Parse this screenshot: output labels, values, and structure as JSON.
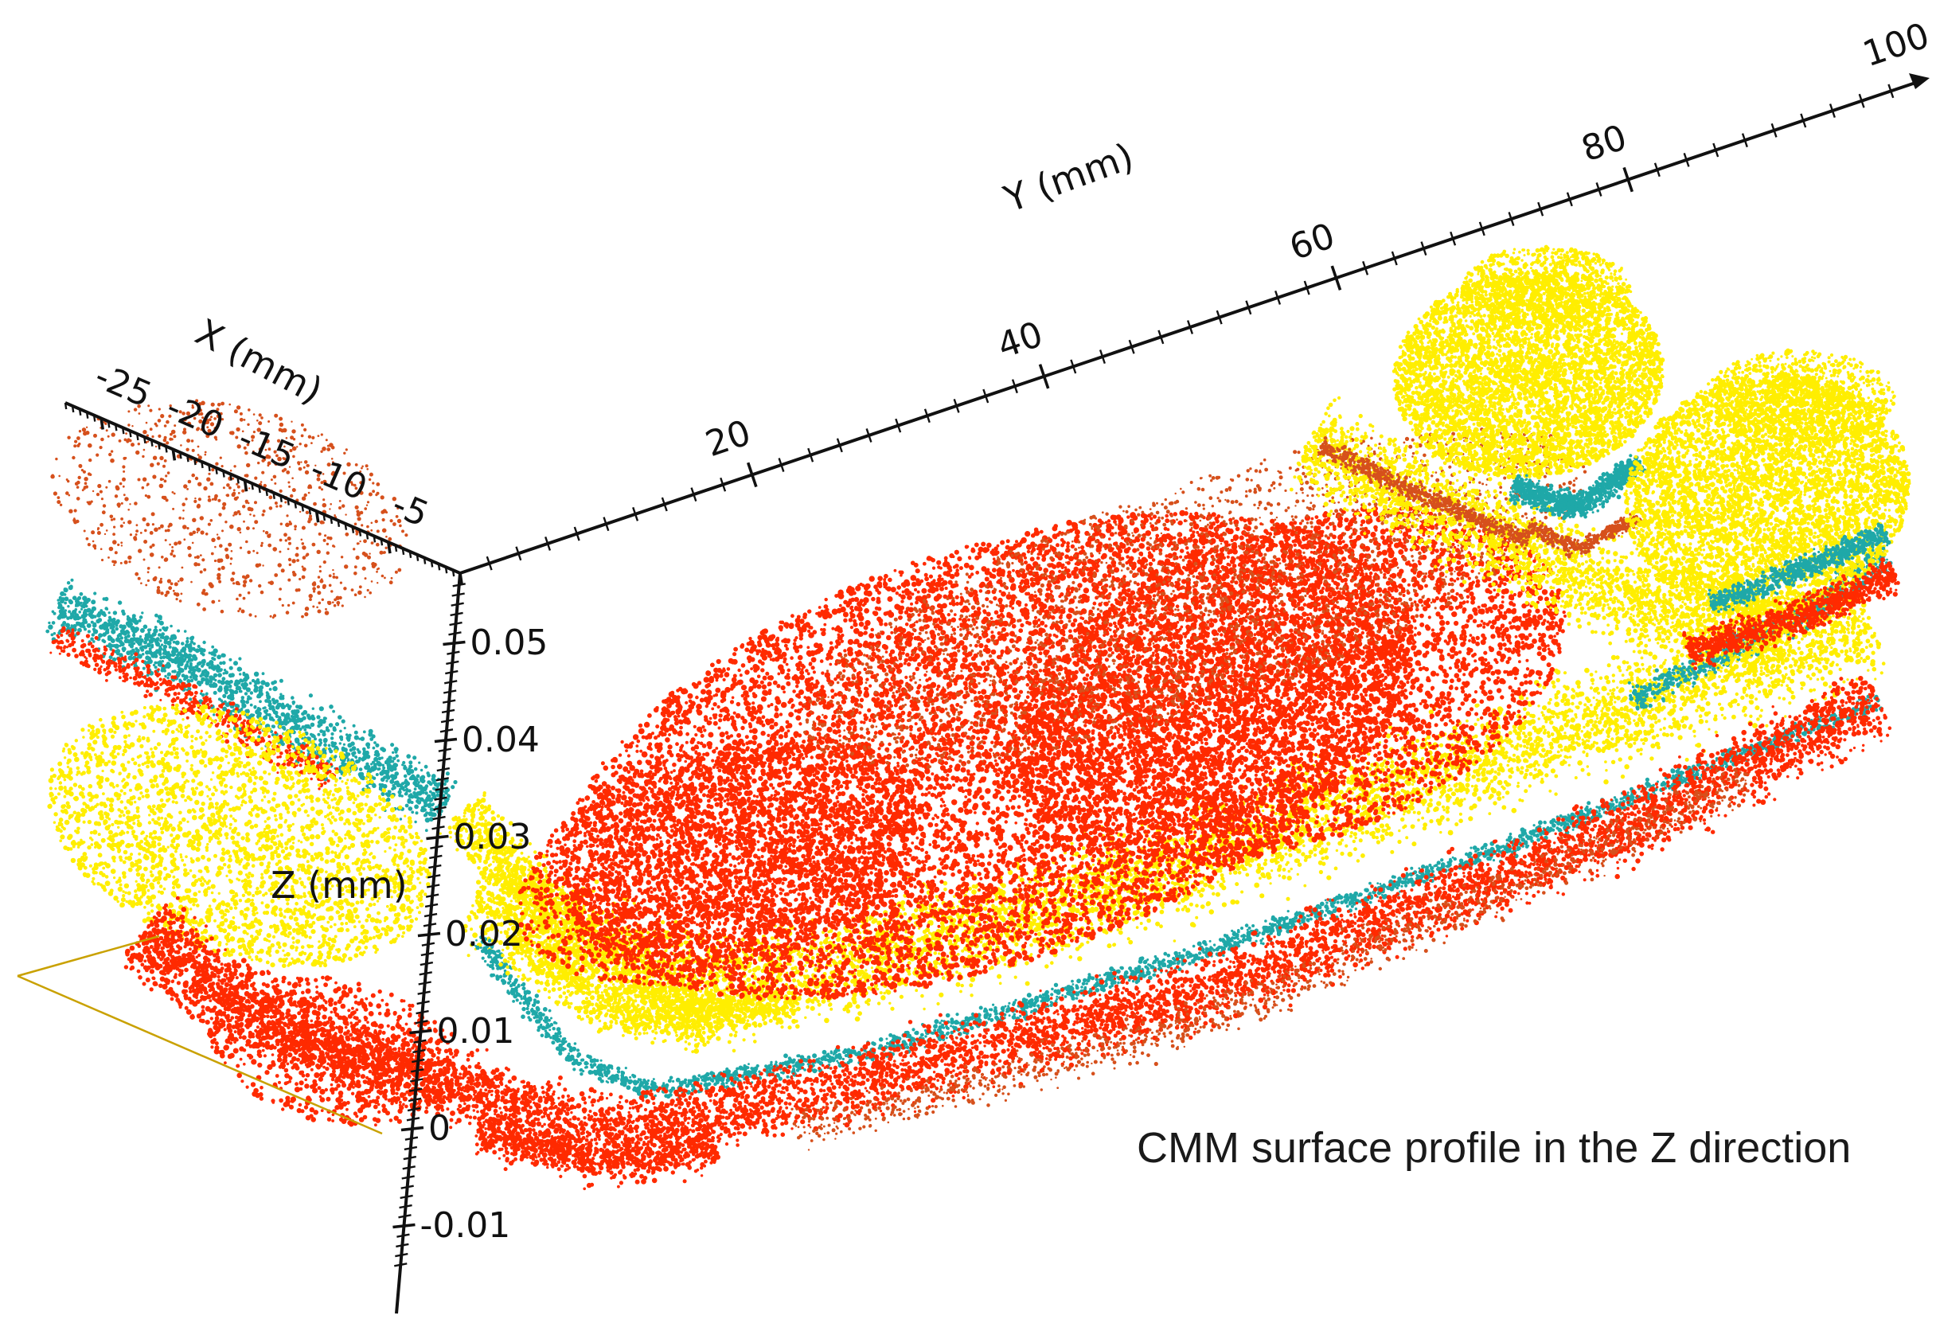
{
  "caption": "CMM surface profile in the Z direction",
  "chart_data": {
    "type": "scatter",
    "subtype": "3d point cloud",
    "x_axis": {
      "title": "X (mm)",
      "ticks": [
        -25,
        -20,
        -15,
        -10,
        -5
      ]
    },
    "y_axis": {
      "title": "Y (mm)",
      "ticks": [
        20,
        40,
        60,
        80,
        100
      ],
      "range": [
        0,
        100
      ]
    },
    "z_axis": {
      "title": "Z (mm)",
      "ticks": [
        -0.01,
        0,
        0.01,
        0.02,
        0.03,
        0.04,
        0.05
      ]
    },
    "colors": {
      "low": "#ff2a00",
      "low_edge": "#d6501c",
      "mid": "#1fa8a8",
      "high": "#ffee00"
    },
    "grid": false,
    "legend": "none"
  }
}
